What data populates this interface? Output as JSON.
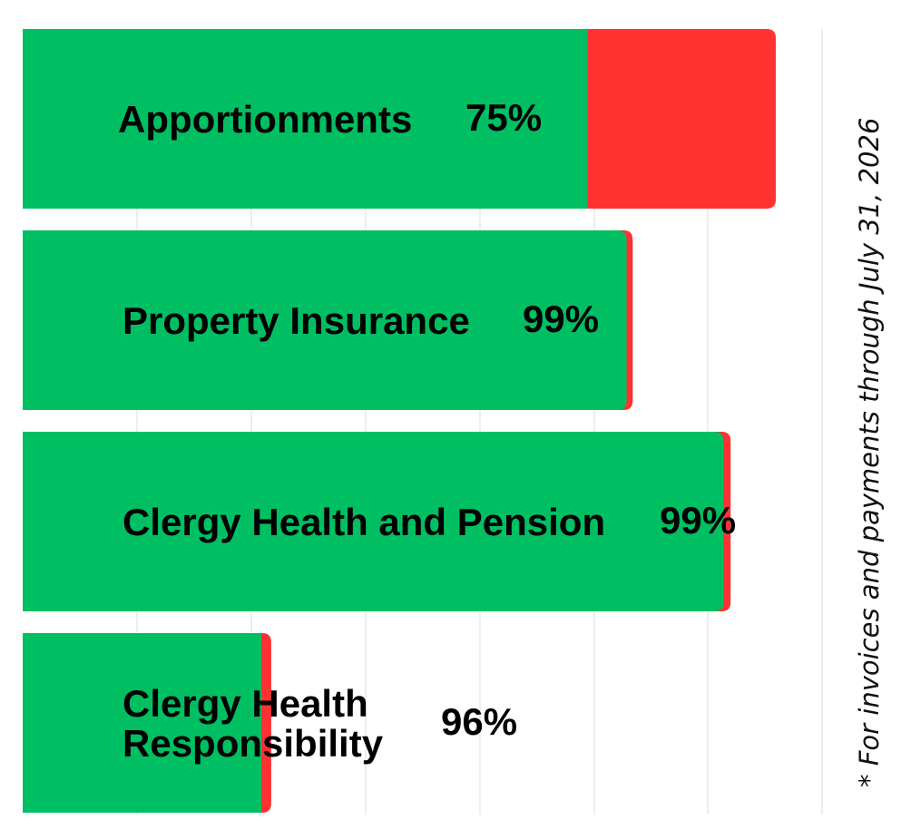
{
  "chart_data": {
    "type": "bar",
    "orientation": "horizontal",
    "stacked": true,
    "categories": [
      "Apportionments",
      "Property Insurance",
      "Clergy Health and Pension",
      "Clergy Health Responsibility"
    ],
    "category_lines": [
      [
        "Apportionments"
      ],
      [
        "Property Insurance"
      ],
      [
        "Clergy Health and Pension"
      ],
      [
        "Clergy Health",
        "Responsibility"
      ]
    ],
    "percent_labels": [
      "75%",
      "99%",
      "99%",
      "96%"
    ],
    "series": [
      {
        "values": [
          0.75,
          0.99,
          0.99,
          0.96
        ]
      },
      {
        "values": [
          0.25,
          0.01,
          0.01,
          0.04
        ]
      }
    ],
    "bar_totals_relative": [
      1.0,
      0.81,
      0.94,
      0.33
    ],
    "colors": {
      "paid": "#00BF63",
      "unpaid": "#FF3131",
      "grid": "#DDDDDD"
    },
    "grid": true,
    "legend": "none",
    "footnote": "* For invoices and payments through July 31, 2026"
  }
}
